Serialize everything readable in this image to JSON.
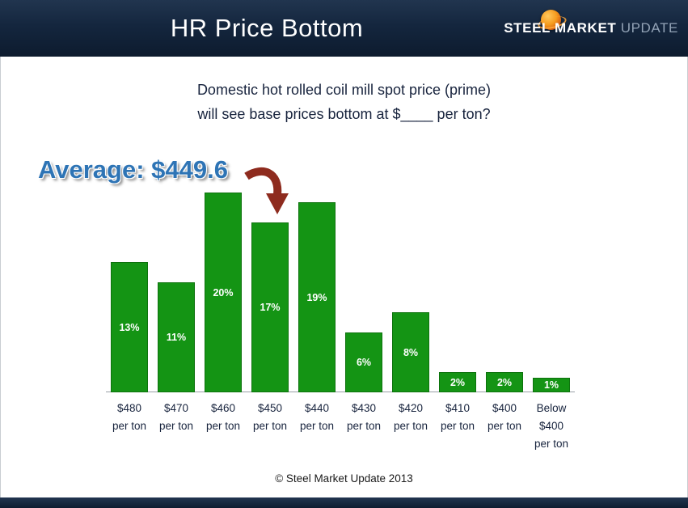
{
  "header": {
    "title": "HR Price Bottom",
    "logo": {
      "steel": "STEEL",
      "market": "MARKET",
      "update": "UPDATE"
    }
  },
  "question": {
    "line1": "Domestic hot rolled coil mill spot price (prime)",
    "line2": "will see base prices bottom at $____ per ton?"
  },
  "average": {
    "text": "Average: $449.6"
  },
  "chart_data": {
    "type": "bar",
    "title": "HR Price Bottom survey results",
    "categories": [
      [
        "$480",
        "per ton"
      ],
      [
        "$470",
        "per ton"
      ],
      [
        "$460",
        "per ton"
      ],
      [
        "$450",
        "per ton"
      ],
      [
        "$440",
        "per ton"
      ],
      [
        "$430",
        "per ton"
      ],
      [
        "$420",
        "per ton"
      ],
      [
        "$410",
        "per ton"
      ],
      [
        "$400",
        "per ton"
      ],
      [
        "Below",
        "$400",
        "per ton"
      ]
    ],
    "values": [
      13,
      11,
      20,
      17,
      19,
      6,
      8,
      2,
      2,
      1
    ],
    "labels": [
      "13%",
      "11%",
      "20%",
      "17%",
      "19%",
      "6%",
      "8%",
      "2%",
      "2%",
      "1%"
    ],
    "xlabel": "",
    "ylabel": "",
    "ylim": [
      0,
      20
    ],
    "grid": false,
    "legend": false,
    "bar_color": "#149414",
    "bar_border_color": "#0d720d",
    "value_label_color": "#ffffff"
  },
  "annotations": {
    "average_pointer": "curved-down-arrow"
  },
  "footer": {
    "copyright": "© Steel Market Update 2013"
  },
  "colors": {
    "header_bg": "#14263e",
    "accent_blue": "#2e74b5",
    "arrow_red": "#8e2b1e",
    "bar_green": "#149414",
    "logo_orange": "#f59b1e",
    "text_navy": "#17233d"
  }
}
